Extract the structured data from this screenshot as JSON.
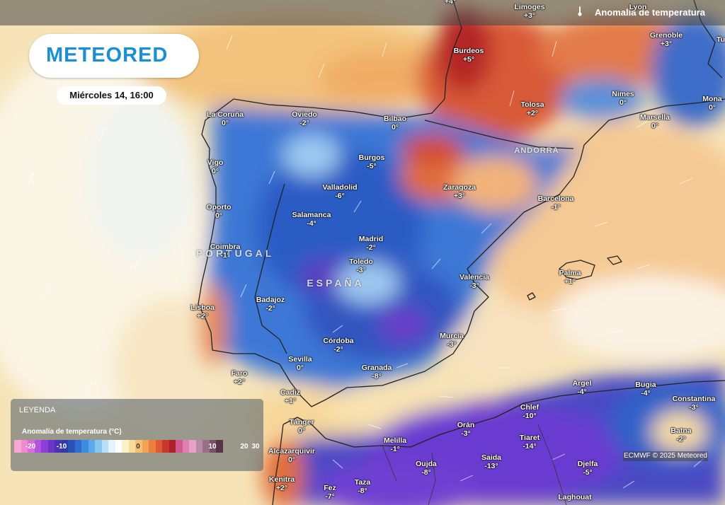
{
  "header": {
    "title": "Anomalía de temperatura",
    "icon": "thermometer-icon"
  },
  "logo": {
    "text": "METEORED"
  },
  "datetime": "Miércoles 14, 16:00",
  "countries": [
    {
      "name": "PORTUGAL"
    },
    {
      "name": "ESPAÑA"
    },
    {
      "name": "ANDORRA"
    }
  ],
  "cities": [
    {
      "name": "",
      "value": "+4°"
    },
    {
      "name": "Limoges",
      "value": "+3°"
    },
    {
      "name": "Lyon",
      "value": ""
    },
    {
      "name": "Burdeos",
      "value": "+5°"
    },
    {
      "name": "Grenoble",
      "value": "+3°"
    },
    {
      "name": "Tu",
      "value": ""
    },
    {
      "name": "Tolosa",
      "value": "+2°"
    },
    {
      "name": "Nimes",
      "value": "0°"
    },
    {
      "name": "Mona",
      "value": "0°"
    },
    {
      "name": "Marsella",
      "value": "0°"
    },
    {
      "name": "La Coruña",
      "value": "0°"
    },
    {
      "name": "Oviedo",
      "value": "-2°"
    },
    {
      "name": "Bilbao",
      "value": "0°"
    },
    {
      "name": "Burgos",
      "value": "-5°"
    },
    {
      "name": "Vigo",
      "value": "0°"
    },
    {
      "name": "Valladolid",
      "value": "-6°"
    },
    {
      "name": "Zaragoza",
      "value": "+3°"
    },
    {
      "name": "Barcelona",
      "value": "-1°"
    },
    {
      "name": "Oporto",
      "value": "0°"
    },
    {
      "name": "Salamanca",
      "value": "-4°"
    },
    {
      "name": "Madrid",
      "value": "-2°"
    },
    {
      "name": "Coimbra",
      "value": "-1°"
    },
    {
      "name": "Toledo",
      "value": "-3°"
    },
    {
      "name": "Palma",
      "value": "+1°"
    },
    {
      "name": "Valencia",
      "value": "-3°"
    },
    {
      "name": "Badajoz",
      "value": "-2°"
    },
    {
      "name": "Lisboa",
      "value": "+2°"
    },
    {
      "name": "Murcia",
      "value": "-3°"
    },
    {
      "name": "Córdoba",
      "value": "-2°"
    },
    {
      "name": "Sevilla",
      "value": "0°"
    },
    {
      "name": "Faro",
      "value": "+2°"
    },
    {
      "name": "Granada",
      "value": "-8°"
    },
    {
      "name": "Cadiz",
      "value": "+1°"
    },
    {
      "name": "Argel",
      "value": "-4°"
    },
    {
      "name": "Bugia",
      "value": "-4°"
    },
    {
      "name": "Constantina",
      "value": "-3°"
    },
    {
      "name": "Chlef",
      "value": "-10°"
    },
    {
      "name": "Batna",
      "value": "-2°"
    },
    {
      "name": "Tánger",
      "value": "0°"
    },
    {
      "name": "Orán",
      "value": "-3°"
    },
    {
      "name": "Melilla",
      "value": "-1°"
    },
    {
      "name": "Tiaret",
      "value": "-14°"
    },
    {
      "name": "Alcazarquivir",
      "value": "0°"
    },
    {
      "name": "Saida",
      "value": "-13°"
    },
    {
      "name": "Oujda",
      "value": "-8°"
    },
    {
      "name": "Djelfa",
      "value": "-5°"
    },
    {
      "name": "Kenitra",
      "value": "+2°"
    },
    {
      "name": "Fez",
      "value": "-7°"
    },
    {
      "name": "Taza",
      "value": "-8°"
    },
    {
      "name": "Laghouat",
      "value": ""
    }
  ],
  "legend": {
    "title": "LEYENDA",
    "subtitle": "Anomalía de temperatura (°C)",
    "ticks": [
      "-20",
      "-10",
      "0",
      "10",
      "20",
      "30"
    ],
    "colors": [
      "#f7a6d6",
      "#ef8ad2",
      "#d76be0",
      "#b552e0",
      "#8f3fd8",
      "#6b36c8",
      "#4a33b4",
      "#2f3ca6",
      "#2a52b8",
      "#2f6ed0",
      "#3c8be0",
      "#5ba8ea",
      "#86c6f0",
      "#b6e0f6",
      "#e2f3fb",
      "#ffffff",
      "#fcf1c8",
      "#f9dc9a",
      "#f6c072",
      "#f2a252",
      "#eb7f3c",
      "#de5a32",
      "#c9382c",
      "#b02028",
      "#d25a8e",
      "#e07fb0",
      "#e9a0c6",
      "#b88aa8",
      "#9a6e86",
      "#7a5064",
      "#5a3444"
    ]
  },
  "credit": "ECMWF © 2025 Meteored"
}
